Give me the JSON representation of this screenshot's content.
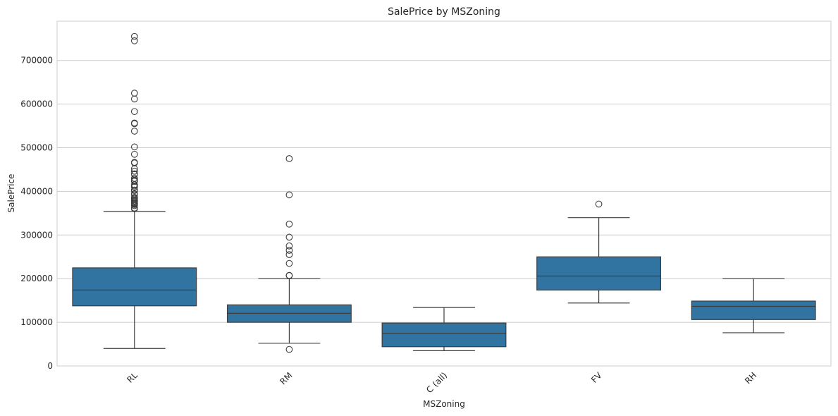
{
  "chart_data": {
    "type": "box",
    "title": "SalePrice by MSZoning",
    "xlabel": "MSZoning",
    "ylabel": "SalePrice",
    "ylim": [
      0,
      790000
    ],
    "yticks": [
      0,
      100000,
      200000,
      300000,
      400000,
      500000,
      600000,
      700000
    ],
    "grid": "horizontal",
    "colors": {
      "box": "#3274a1",
      "line": "#3d3d3d",
      "grid": "#cccccc",
      "frame": "#cccccc"
    },
    "categories": [
      "RL",
      "RM",
      "C (all)",
      "FV",
      "RH"
    ],
    "boxes": [
      {
        "category": "RL",
        "whisker_low": 40000,
        "q1": 137700,
        "median": 174000,
        "q3": 224700,
        "whisker_high": 354000,
        "outliers": [
          755000,
          745000,
          625000,
          611657,
          582933,
          556581,
          555000,
          538000,
          501837,
          485000,
          465000,
          466500,
          451950,
          446261,
          440000,
          438780,
          430000,
          426000,
          424870,
          423000,
          415298,
          412500,
          410000,
          403000,
          402861,
          402000,
          394617,
          392500,
          386250,
          385000,
          383970,
          381000,
          378500,
          377500,
          377426,
          375000,
          372500,
          372402,
          370878,
          369900,
          367294,
          361919,
          360000
        ]
      },
      {
        "category": "RM",
        "whisker_low": 52000,
        "q1": 100000,
        "median": 120500,
        "q3": 140000,
        "whisker_high": 200000,
        "outliers": [
          475000,
          392000,
          325000,
          295000,
          275000,
          265000,
          255000,
          235000,
          207500,
          206900,
          37900
        ]
      },
      {
        "category": "C (all)",
        "whisker_low": 34900,
        "q1": 43998,
        "median": 74700,
        "q3": 98332,
        "whisker_high": 133900,
        "outliers": []
      },
      {
        "category": "FV",
        "whisker_low": 144152,
        "q1": 174000,
        "median": 205950,
        "q3": 250000,
        "whisker_high": 339750,
        "outliers": [
          370878
        ]
      },
      {
        "category": "RH",
        "whisker_low": 76000,
        "q1": 106150,
        "median": 136500,
        "q3": 148608,
        "whisker_high": 200000,
        "outliers": []
      }
    ]
  }
}
